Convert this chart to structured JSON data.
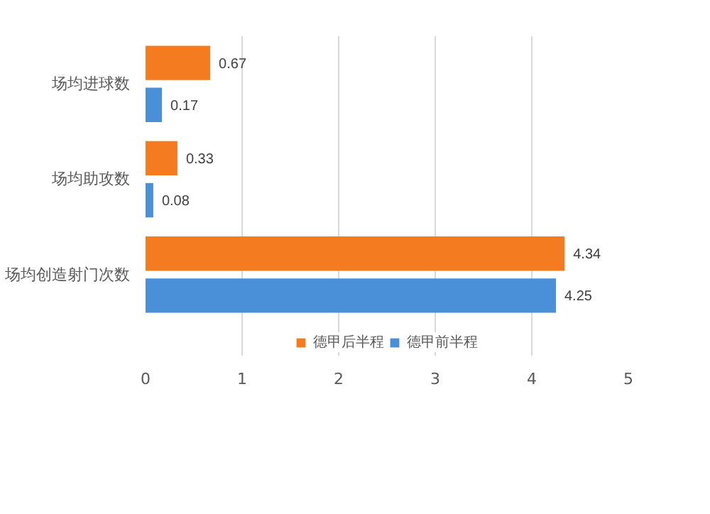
{
  "chart_data": {
    "type": "bar",
    "orientation": "horizontal",
    "categories": [
      "场均进球数",
      "场均助攻数",
      "场均创造射门次数"
    ],
    "series": [
      {
        "name": "德甲后半程",
        "color": "#f47b20",
        "values": [
          0.67,
          0.33,
          4.34
        ]
      },
      {
        "name": "德甲前半程",
        "color": "#4a90d9",
        "values": [
          0.17,
          0.08,
          4.25
        ]
      }
    ],
    "xlim": [
      0,
      5
    ],
    "xticks": [
      0,
      1,
      2,
      3,
      4,
      5
    ],
    "grid": "x",
    "legend": "bottom",
    "data_labels": true
  }
}
